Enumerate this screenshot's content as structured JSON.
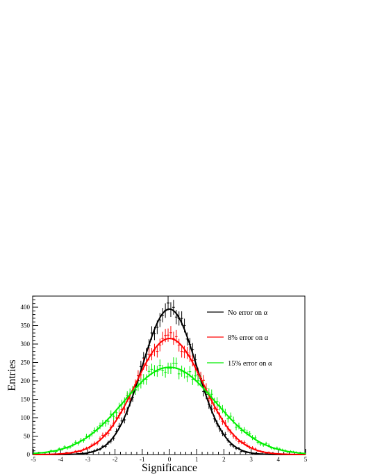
{
  "chart_data": {
    "type": "line",
    "title": "",
    "xlabel": "Significance",
    "ylabel": "Entries",
    "xlim": [
      -5,
      5
    ],
    "ylim": [
      0,
      450
    ],
    "xticks": [
      "-5",
      "-4",
      "-3",
      "-2",
      "-1",
      "0",
      "1",
      "2",
      "3",
      "4",
      "5"
    ],
    "yticks": [
      "0",
      "50",
      "100",
      "150",
      "200",
      "250",
      "300",
      "350",
      "400"
    ],
    "grid": false,
    "legend_position": "top-right",
    "series": [
      {
        "name": "No error on α",
        "color": "#000000",
        "amplitude": 395,
        "mean": 0.0,
        "sigma": 1.0
      },
      {
        "name": "8% error on α",
        "color": "#ff0000",
        "amplitude": 315,
        "mean": 0.0,
        "sigma": 1.25
      },
      {
        "name": "15% error on α",
        "color": "#00ee00",
        "amplitude": 237,
        "mean": 0.0,
        "sigma": 1.68
      }
    ]
  }
}
